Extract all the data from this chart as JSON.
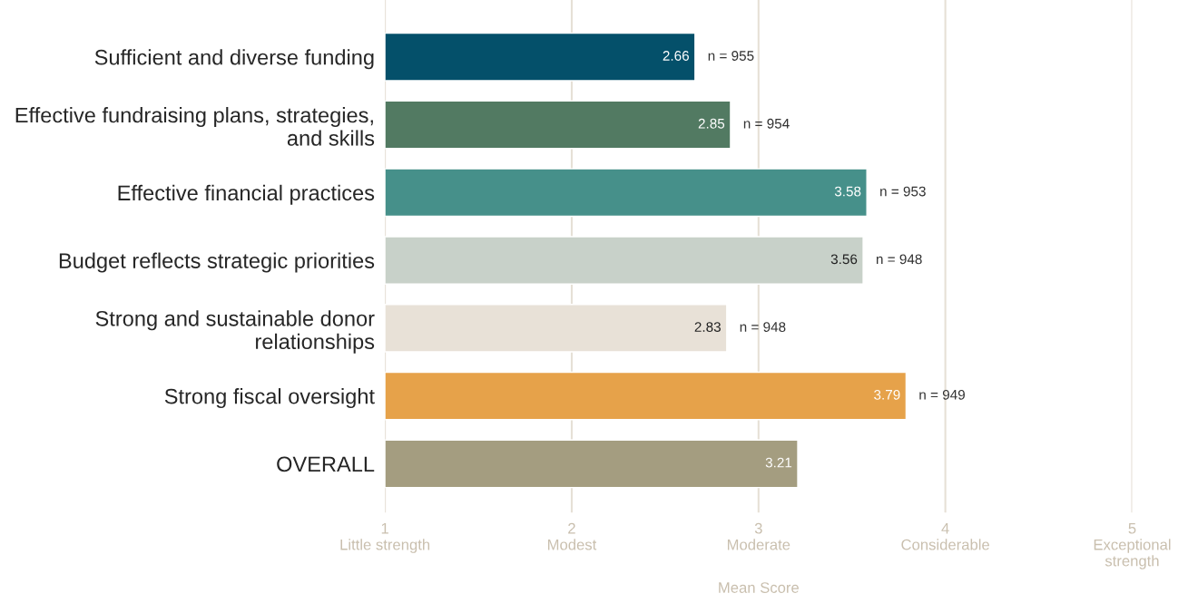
{
  "chart_data": {
    "type": "bar",
    "orientation": "horizontal",
    "xlabel": "Mean Score",
    "categories": [
      "Sufficient and diverse funding",
      "Effective fundraising plans, strategies, and skills",
      "Effective financial practices",
      "Budget reflects strategic priorities",
      "Strong and sustainable donor relationships",
      "Strong fiscal oversight",
      "OVERALL"
    ],
    "values": [
      2.66,
      2.85,
      3.58,
      3.56,
      2.83,
      3.79,
      3.21
    ],
    "colors": [
      "#04506a",
      "#527a62",
      "#46908a",
      "#c8d1c9",
      "#e8e1d7",
      "#e6a24a",
      "#a49d80"
    ],
    "data_labels": true,
    "xlim": [
      1,
      5
    ],
    "xticks": [
      {
        "value": 1,
        "label": "1\nLittle strength"
      },
      {
        "value": 2,
        "label": "2\nModest"
      },
      {
        "value": 3,
        "label": "3\nModerate"
      },
      {
        "value": 4,
        "label": "4\nConsiderable"
      },
      {
        "value": 5,
        "label": "5\nExceptional\nstrength"
      }
    ],
    "grid": "x",
    "annotations": [
      {
        "text": "n = 955",
        "x": 2.66,
        "y": "Sufficient and diverse funding"
      },
      {
        "text": "n = 954",
        "x": 2.85,
        "y": "Effective fundraising plans, strategies, and skills"
      },
      {
        "text": "n = 953",
        "x": 3.58,
        "y": "Effective financial practices"
      },
      {
        "text": "n = 948",
        "x": 3.56,
        "y": "Budget reflects strategic priorities"
      },
      {
        "text": "n = 948",
        "x": 2.83,
        "y": "Strong and sustainable donor relationships"
      },
      {
        "text": "n = 949",
        "x": 3.79,
        "y": "Strong fiscal oversight"
      }
    ]
  }
}
